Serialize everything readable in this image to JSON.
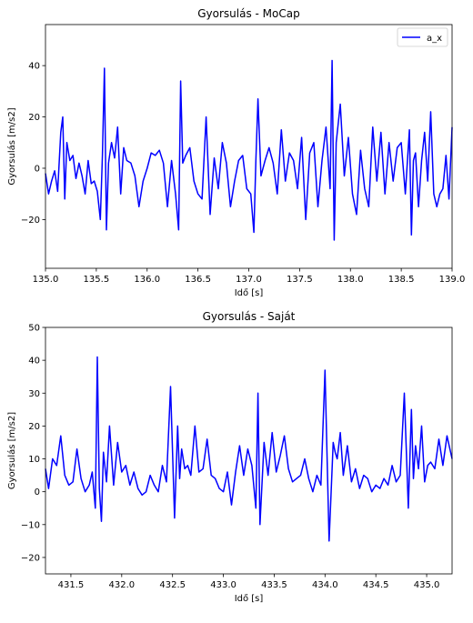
{
  "chart_data": [
    {
      "type": "line",
      "title": "Gyorsulás - MoCap",
      "xlabel": "Idő [s]",
      "ylabel": "Gyorsulás [m/s2]",
      "xlim": [
        135.0,
        139.0
      ],
      "ylim": [
        -39,
        56
      ],
      "xticks": [
        135.0,
        135.5,
        136.0,
        136.5,
        137.0,
        137.5,
        138.0,
        138.5,
        139.0
      ],
      "xtick_labels": [
        "135.0",
        "135.5",
        "136.0",
        "136.5",
        "137.0",
        "137.5",
        "138.0",
        "138.5",
        "139.0"
      ],
      "yticks": [
        -20,
        0,
        20,
        40
      ],
      "ytick_labels": [
        "−20",
        "0",
        "20",
        "40"
      ],
      "grid": false,
      "legend": {
        "position": "upper right",
        "entries": [
          "a_x"
        ]
      },
      "color": "#0000ff",
      "series": [
        {
          "name": "a_x",
          "x": [
            135.0,
            135.03,
            135.06,
            135.09,
            135.12,
            135.15,
            135.17,
            135.19,
            135.21,
            135.24,
            135.27,
            135.3,
            135.33,
            135.36,
            135.39,
            135.42,
            135.45,
            135.48,
            135.51,
            135.54,
            135.56,
            135.58,
            135.6,
            135.62,
            135.65,
            135.68,
            135.71,
            135.74,
            135.77,
            135.8,
            135.84,
            135.88,
            135.92,
            135.96,
            136.0,
            136.04,
            136.08,
            136.12,
            136.16,
            136.2,
            136.24,
            136.28,
            136.31,
            136.33,
            136.35,
            136.38,
            136.42,
            136.46,
            136.5,
            136.54,
            136.58,
            136.62,
            136.66,
            136.7,
            136.74,
            136.78,
            136.82,
            136.86,
            136.9,
            136.94,
            136.98,
            137.02,
            137.05,
            137.07,
            137.09,
            137.12,
            137.16,
            137.2,
            137.24,
            137.28,
            137.32,
            137.36,
            137.4,
            137.44,
            137.48,
            137.52,
            137.56,
            137.6,
            137.64,
            137.68,
            137.72,
            137.76,
            137.8,
            137.82,
            137.84,
            137.86,
            137.9,
            137.94,
            137.98,
            138.02,
            138.06,
            138.1,
            138.14,
            138.18,
            138.22,
            138.26,
            138.3,
            138.34,
            138.38,
            138.42,
            138.46,
            138.5,
            138.54,
            138.58,
            138.6,
            138.62,
            138.64,
            138.67,
            138.7,
            138.73,
            138.76,
            138.79,
            138.82,
            138.85,
            138.88,
            138.91,
            138.94,
            138.97,
            139.0
          ],
          "values": [
            -2,
            -10,
            -5,
            -1,
            -9,
            14,
            20,
            -12,
            10,
            3,
            5,
            -4,
            2,
            -3,
            -10,
            3,
            -6,
            -5,
            -9,
            -20,
            5,
            39,
            -24,
            2,
            10,
            4,
            16,
            -10,
            8,
            3,
            2,
            -3,
            -15,
            -5,
            0,
            6,
            5,
            7,
            2,
            -15,
            3,
            -10,
            -24,
            34,
            2,
            5,
            8,
            -5,
            -10,
            -12,
            20,
            -18,
            4,
            -8,
            10,
            2,
            -15,
            -5,
            3,
            5,
            -8,
            -10,
            -25,
            3,
            27,
            -3,
            3,
            8,
            2,
            -10,
            15,
            -5,
            6,
            3,
            -8,
            12,
            -20,
            6,
            10,
            -15,
            3,
            16,
            -8,
            42,
            -28,
            10,
            25,
            -3,
            12,
            -10,
            -18,
            7,
            -8,
            -15,
            16,
            -5,
            14,
            -10,
            10,
            -5,
            8,
            10,
            -10,
            15,
            -26,
            3,
            6,
            -15,
            3,
            14,
            -5,
            22,
            -10,
            -15,
            -10,
            -8,
            5,
            -12,
            16
          ]
        }
      ]
    },
    {
      "type": "line",
      "title": "Gyorsulás - Saját",
      "xlabel": "Idő [s]",
      "ylabel": "Gyorsulás [m/s2]",
      "xlim": [
        431.25,
        435.25
      ],
      "ylim": [
        -25,
        50
      ],
      "xticks": [
        431.5,
        432.0,
        432.5,
        433.0,
        433.5,
        434.0,
        434.5,
        435.0
      ],
      "xtick_labels": [
        "431.5",
        "432.0",
        "432.5",
        "433.0",
        "433.5",
        "434.0",
        "434.5",
        "435.0"
      ],
      "yticks": [
        -20,
        -10,
        0,
        10,
        20,
        30,
        40,
        50
      ],
      "ytick_labels": [
        "−20",
        "−10",
        "0",
        "10",
        "20",
        "30",
        "40",
        "50"
      ],
      "grid": false,
      "legend": null,
      "color": "#0000ff",
      "series": [
        {
          "x": [
            431.25,
            431.28,
            431.32,
            431.36,
            431.4,
            431.44,
            431.48,
            431.52,
            431.56,
            431.6,
            431.64,
            431.68,
            431.71,
            431.74,
            431.76,
            431.78,
            431.8,
            431.82,
            431.85,
            431.88,
            431.92,
            431.96,
            432.0,
            432.04,
            432.08,
            432.12,
            432.16,
            432.2,
            432.24,
            432.28,
            432.32,
            432.36,
            432.4,
            432.44,
            432.48,
            432.52,
            432.55,
            432.57,
            432.59,
            432.62,
            432.65,
            432.68,
            432.72,
            432.76,
            432.8,
            432.84,
            432.88,
            432.92,
            432.96,
            433.0,
            433.04,
            433.08,
            433.12,
            433.16,
            433.2,
            433.24,
            433.28,
            433.32,
            433.34,
            433.36,
            433.4,
            433.44,
            433.48,
            433.52,
            433.56,
            433.6,
            433.64,
            433.68,
            433.72,
            433.76,
            433.8,
            433.84,
            433.88,
            433.92,
            433.96,
            434.0,
            434.04,
            434.08,
            434.1,
            434.12,
            434.15,
            434.18,
            434.22,
            434.26,
            434.3,
            434.34,
            434.38,
            434.42,
            434.46,
            434.5,
            434.54,
            434.58,
            434.62,
            434.66,
            434.7,
            434.74,
            434.78,
            434.82,
            434.85,
            434.87,
            434.89,
            434.92,
            434.95,
            434.98,
            435.01,
            435.04,
            435.08,
            435.12,
            435.16,
            435.2,
            435.25
          ],
          "values": [
            7,
            1,
            10,
            8,
            17,
            5,
            2,
            3,
            13,
            4,
            0,
            2,
            6,
            -5,
            41,
            1,
            -9,
            12,
            3,
            20,
            2,
            15,
            6,
            8,
            2,
            6,
            1,
            -1,
            0,
            5,
            2,
            0,
            8,
            3,
            32,
            -8,
            20,
            4,
            13,
            7,
            8,
            5,
            20,
            6,
            7,
            16,
            5,
            4,
            1,
            0,
            6,
            -4,
            6,
            14,
            5,
            13,
            8,
            -5,
            30,
            -10,
            15,
            5,
            18,
            6,
            11,
            17,
            7,
            3,
            4,
            5,
            10,
            4,
            0,
            5,
            2,
            37,
            -15,
            15,
            12,
            10,
            18,
            5,
            14,
            3,
            7,
            1,
            5,
            4,
            0,
            2,
            1,
            4,
            2,
            8,
            3,
            5,
            30,
            -5,
            25,
            4,
            14,
            7,
            20,
            3,
            8,
            9,
            7,
            16,
            8,
            17,
            10
          ]
        }
      ]
    }
  ]
}
